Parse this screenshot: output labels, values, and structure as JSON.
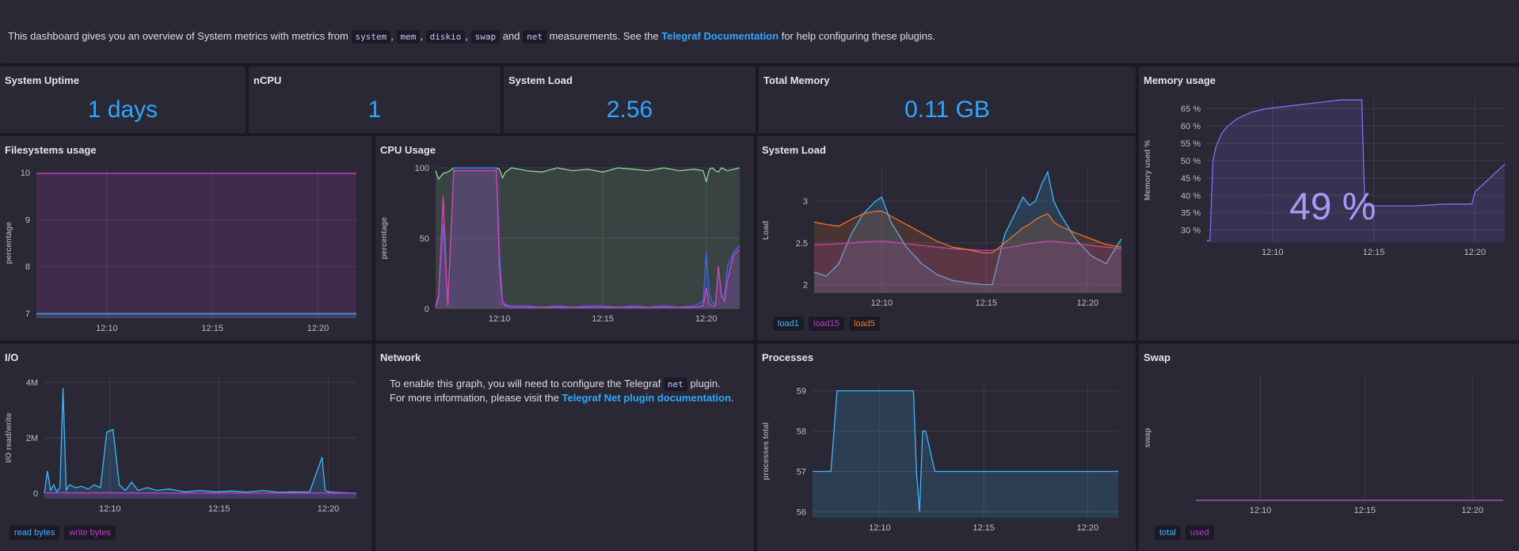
{
  "notes": {
    "p1": "This dashboard gives you an overview of System metrics with metrics from",
    "m1": "system",
    "c1": ",",
    "m2": "mem",
    "c2": ",",
    "m3": "diskio",
    "c3": ",",
    "m4": "swap",
    "and": "and",
    "m5": "net",
    "p2": "measurements. See the",
    "link": "Telegraf Documentation",
    "p3": "for help configuring these plugins."
  },
  "stats": {
    "uptime": {
      "title": "System Uptime",
      "value": "1 days"
    },
    "ncpu": {
      "title": "nCPU",
      "value": "1"
    },
    "load": {
      "title": "System Load",
      "value": "2.56"
    },
    "memory": {
      "title": "Total Memory",
      "value": "0.11 GB"
    }
  },
  "panels": {
    "memory_usage": {
      "title": "Memory usage",
      "gauge": "49 %"
    },
    "filesystems": {
      "title": "Filesystems usage"
    },
    "cpu": {
      "title": "CPU Usage"
    },
    "sysload": {
      "title": "System Load"
    },
    "io": {
      "title": "I/O"
    },
    "network": {
      "title": "Network",
      "l1a": "To enable this graph, you will need to configure the Telegraf",
      "code": "net",
      "l1b": "plugin.",
      "l2a": "For more information, please visit the",
      "link": "Telegraf Net plugin documentation",
      "l2b": "."
    },
    "processes": {
      "title": "Processes"
    },
    "swap": {
      "title": "Swap"
    }
  },
  "colors": {
    "blue": "#3fb7ff",
    "magenta": "#c13bc6",
    "green": "#8ed790",
    "orange": "#f0742a",
    "purple": "#9a8ff0",
    "purple_line": "#7d6ff5",
    "grid": "#3d3c4a",
    "axis_text": "#bdbdc8"
  },
  "chart_data": [
    {
      "id": "filesystems",
      "type": "area",
      "ylabel": "percentage",
      "xticks": [
        "12:10",
        "12:15",
        "12:20"
      ],
      "ylim": [
        6.9,
        10.1
      ],
      "yticks": [
        7,
        8,
        9,
        10
      ],
      "x": [
        0,
        1
      ],
      "xlim": [
        0,
        1
      ],
      "xtickpos": [
        0.22,
        0.55,
        0.88
      ],
      "series": [
        {
          "name": "",
          "color": "#c13bc6",
          "values": [
            9.98,
            9.98
          ]
        },
        {
          "name": "",
          "color": "#3fb7ff",
          "values": [
            7.0,
            7.0
          ]
        }
      ]
    },
    {
      "id": "cpu",
      "type": "area",
      "ylabel": "percentage",
      "xticks": [
        "12:10",
        "12:15",
        "12:20"
      ],
      "ylim": [
        0,
        100
      ],
      "yticks": [
        0,
        50,
        100
      ],
      "x": [
        0,
        0.01,
        0.025,
        0.04,
        0.06,
        0.08,
        0.2,
        0.21,
        0.22,
        0.23,
        0.25,
        0.3,
        0.35,
        0.4,
        0.45,
        0.5,
        0.55,
        0.6,
        0.65,
        0.7,
        0.75,
        0.8,
        0.85,
        0.88,
        0.89,
        0.9,
        0.91,
        0.92,
        0.93,
        0.94,
        0.95,
        0.96,
        0.98,
        1.0
      ],
      "xlim": [
        0,
        1
      ],
      "xtickpos": [
        0.21,
        0.55,
        0.89
      ],
      "series": [
        {
          "name": "",
          "color": "#8ed790",
          "values": [
            98,
            92,
            96,
            97,
            100,
            100,
            100,
            99,
            93,
            97,
            100,
            98,
            97,
            100,
            98,
            99,
            97,
            100,
            99,
            98,
            100,
            98,
            99,
            98,
            90,
            99,
            100,
            98,
            97,
            100,
            99,
            98,
            99,
            100
          ]
        },
        {
          "name": "",
          "color": "#3a65ff",
          "values": [
            2,
            10,
            60,
            3,
            100,
            100,
            100,
            40,
            6,
            3,
            2,
            2,
            1,
            2,
            1,
            2,
            2,
            1,
            2,
            1,
            2,
            1,
            2,
            5,
            40,
            10,
            5,
            3,
            30,
            8,
            10,
            30,
            40,
            45
          ]
        },
        {
          "name": "",
          "color": "#e040b0",
          "values": [
            1,
            8,
            80,
            2,
            98,
            98,
            98,
            30,
            4,
            2,
            1,
            1,
            1,
            1,
            1,
            1,
            1,
            1,
            1,
            1,
            1,
            1,
            1,
            2,
            15,
            3,
            2,
            2,
            30,
            10,
            5,
            20,
            38,
            42
          ]
        }
      ]
    },
    {
      "id": "sysload",
      "type": "area",
      "ylabel": "Load",
      "xticks": [
        "12:10",
        "12:15",
        "12:20"
      ],
      "ylim": [
        1.9,
        3.4
      ],
      "yticks": [
        2,
        2.5,
        3
      ],
      "x": [
        0,
        0.04,
        0.08,
        0.12,
        0.16,
        0.2,
        0.22,
        0.25,
        0.3,
        0.35,
        0.4,
        0.45,
        0.5,
        0.55,
        0.58,
        0.62,
        0.66,
        0.68,
        0.7,
        0.72,
        0.74,
        0.76,
        0.78,
        0.8,
        0.85,
        0.9,
        0.95,
        1.0
      ],
      "xlim": [
        0,
        1
      ],
      "xtickpos": [
        0.22,
        0.56,
        0.89
      ],
      "series": [
        {
          "name": "load1",
          "color": "#3fb7ff",
          "values": [
            2.15,
            2.1,
            2.25,
            2.6,
            2.85,
            3.0,
            3.05,
            2.75,
            2.45,
            2.25,
            2.12,
            2.05,
            2.02,
            2.0,
            2.0,
            2.6,
            2.9,
            3.05,
            2.95,
            3.0,
            3.2,
            3.35,
            3.0,
            2.85,
            2.55,
            2.35,
            2.25,
            2.55
          ]
        },
        {
          "name": "load15",
          "color": "#c13bc6",
          "values": [
            2.48,
            2.48,
            2.49,
            2.5,
            2.51,
            2.52,
            2.52,
            2.51,
            2.49,
            2.47,
            2.45,
            2.43,
            2.42,
            2.41,
            2.41,
            2.44,
            2.46,
            2.48,
            2.49,
            2.5,
            2.51,
            2.52,
            2.52,
            2.51,
            2.49,
            2.47,
            2.45,
            2.43
          ]
        },
        {
          "name": "load5",
          "color": "#f0742a",
          "values": [
            2.75,
            2.72,
            2.7,
            2.78,
            2.85,
            2.88,
            2.88,
            2.82,
            2.72,
            2.62,
            2.52,
            2.45,
            2.42,
            2.38,
            2.38,
            2.5,
            2.62,
            2.68,
            2.72,
            2.78,
            2.82,
            2.85,
            2.75,
            2.7,
            2.62,
            2.55,
            2.48,
            2.45
          ]
        }
      ]
    },
    {
      "id": "memory",
      "type": "area",
      "ylabel": "Memory used %",
      "xticks": [
        "12:10",
        "12:15",
        "12:20"
      ],
      "ylim": [
        26.5,
        68
      ],
      "yticks": [
        30,
        35,
        40,
        45,
        50,
        55,
        60,
        65
      ],
      "yunit": " %",
      "x": [
        0,
        0.01,
        0.02,
        0.03,
        0.05,
        0.07,
        0.1,
        0.15,
        0.2,
        0.3,
        0.4,
        0.45,
        0.52,
        0.53,
        0.6,
        0.7,
        0.8,
        0.85,
        0.89,
        0.9,
        0.95,
        1.0
      ],
      "xlim": [
        0,
        1
      ],
      "xtickpos": [
        0.22,
        0.56,
        0.9
      ],
      "series": [
        {
          "name": "",
          "color": "#7d6ff5",
          "values": [
            27,
            27,
            50,
            54,
            58,
            60,
            62,
            64,
            65,
            66,
            67,
            67.5,
            67.5,
            37,
            37,
            37,
            37.5,
            37.5,
            37.5,
            41,
            45,
            49
          ]
        }
      ]
    },
    {
      "id": "io",
      "type": "area",
      "ylabel": "I/O read/write",
      "xticks": [
        "12:10",
        "12:15",
        "12:20"
      ],
      "ylim": [
        -200000,
        4200000
      ],
      "yticks": [
        0,
        2000000,
        4000000
      ],
      "yticklabels": [
        "0",
        "2M",
        "4M"
      ],
      "x": [
        0,
        0.01,
        0.02,
        0.03,
        0.04,
        0.05,
        0.06,
        0.07,
        0.08,
        0.1,
        0.12,
        0.14,
        0.16,
        0.18,
        0.2,
        0.22,
        0.24,
        0.26,
        0.28,
        0.3,
        0.33,
        0.36,
        0.4,
        0.45,
        0.5,
        0.55,
        0.6,
        0.65,
        0.7,
        0.75,
        0.8,
        0.85,
        0.89,
        0.9,
        0.91,
        0.93,
        0.95,
        1.0
      ],
      "xlim": [
        0,
        1
      ],
      "xtickpos": [
        0.21,
        0.56,
        0.91
      ],
      "series": [
        {
          "name": "read bytes",
          "color": "#3fb7ff",
          "values": [
            0,
            800000,
            100000,
            300000,
            50000,
            200000,
            3800000,
            100000,
            300000,
            200000,
            250000,
            150000,
            300000,
            200000,
            2200000,
            2300000,
            300000,
            100000,
            400000,
            100000,
            200000,
            100000,
            150000,
            50000,
            100000,
            50000,
            80000,
            40000,
            100000,
            30000,
            50000,
            40000,
            1300000,
            100000,
            50000,
            30000,
            20000,
            0
          ]
        },
        {
          "name": "write bytes",
          "color": "#c13bc6",
          "values": [
            0,
            20000,
            10000,
            20000,
            10000,
            20000,
            30000,
            10000,
            20000,
            20000,
            15000,
            10000,
            20000,
            10000,
            30000,
            20000,
            10000,
            10000,
            20000,
            10000,
            10000,
            10000,
            10000,
            5000,
            10000,
            5000,
            8000,
            4000,
            10000,
            3000,
            5000,
            4000,
            20000,
            10000,
            5000,
            3000,
            2000,
            0
          ]
        }
      ]
    },
    {
      "id": "processes",
      "type": "area",
      "ylabel": "processes total",
      "xticks": [
        "12:10",
        "12:15",
        "12:20"
      ],
      "ylim": [
        55.85,
        59.15
      ],
      "yticks": [
        56,
        57,
        58,
        59
      ],
      "x": [
        0,
        0.06,
        0.08,
        0.33,
        0.34,
        0.35,
        0.36,
        0.37,
        0.4,
        0.41,
        0.5,
        0.6,
        0.7,
        0.8,
        0.9,
        1.0
      ],
      "xlim": [
        0,
        1
      ],
      "xtickpos": [
        0.22,
        0.56,
        0.9
      ],
      "series": [
        {
          "name": "",
          "color": "#3fb7ff",
          "values": [
            57,
            57,
            59,
            59,
            57,
            56,
            58,
            58,
            57,
            57,
            57,
            57,
            57,
            57,
            57,
            57
          ]
        }
      ]
    },
    {
      "id": "swap",
      "type": "area",
      "ylabel": "swap",
      "xticks": [
        "12:10",
        "12:15",
        "12:20"
      ],
      "ylim": [
        0,
        1
      ],
      "yticks": [],
      "x": [
        0,
        1
      ],
      "xlim": [
        0,
        1
      ],
      "xtickpos": [
        0.21,
        0.55,
        0.9
      ],
      "series": [
        {
          "name": "total",
          "color": "#3fb7ff",
          "values": [
            0,
            0
          ]
        },
        {
          "name": "used",
          "color": "#c13bc6",
          "values": [
            0,
            0
          ]
        }
      ]
    }
  ]
}
